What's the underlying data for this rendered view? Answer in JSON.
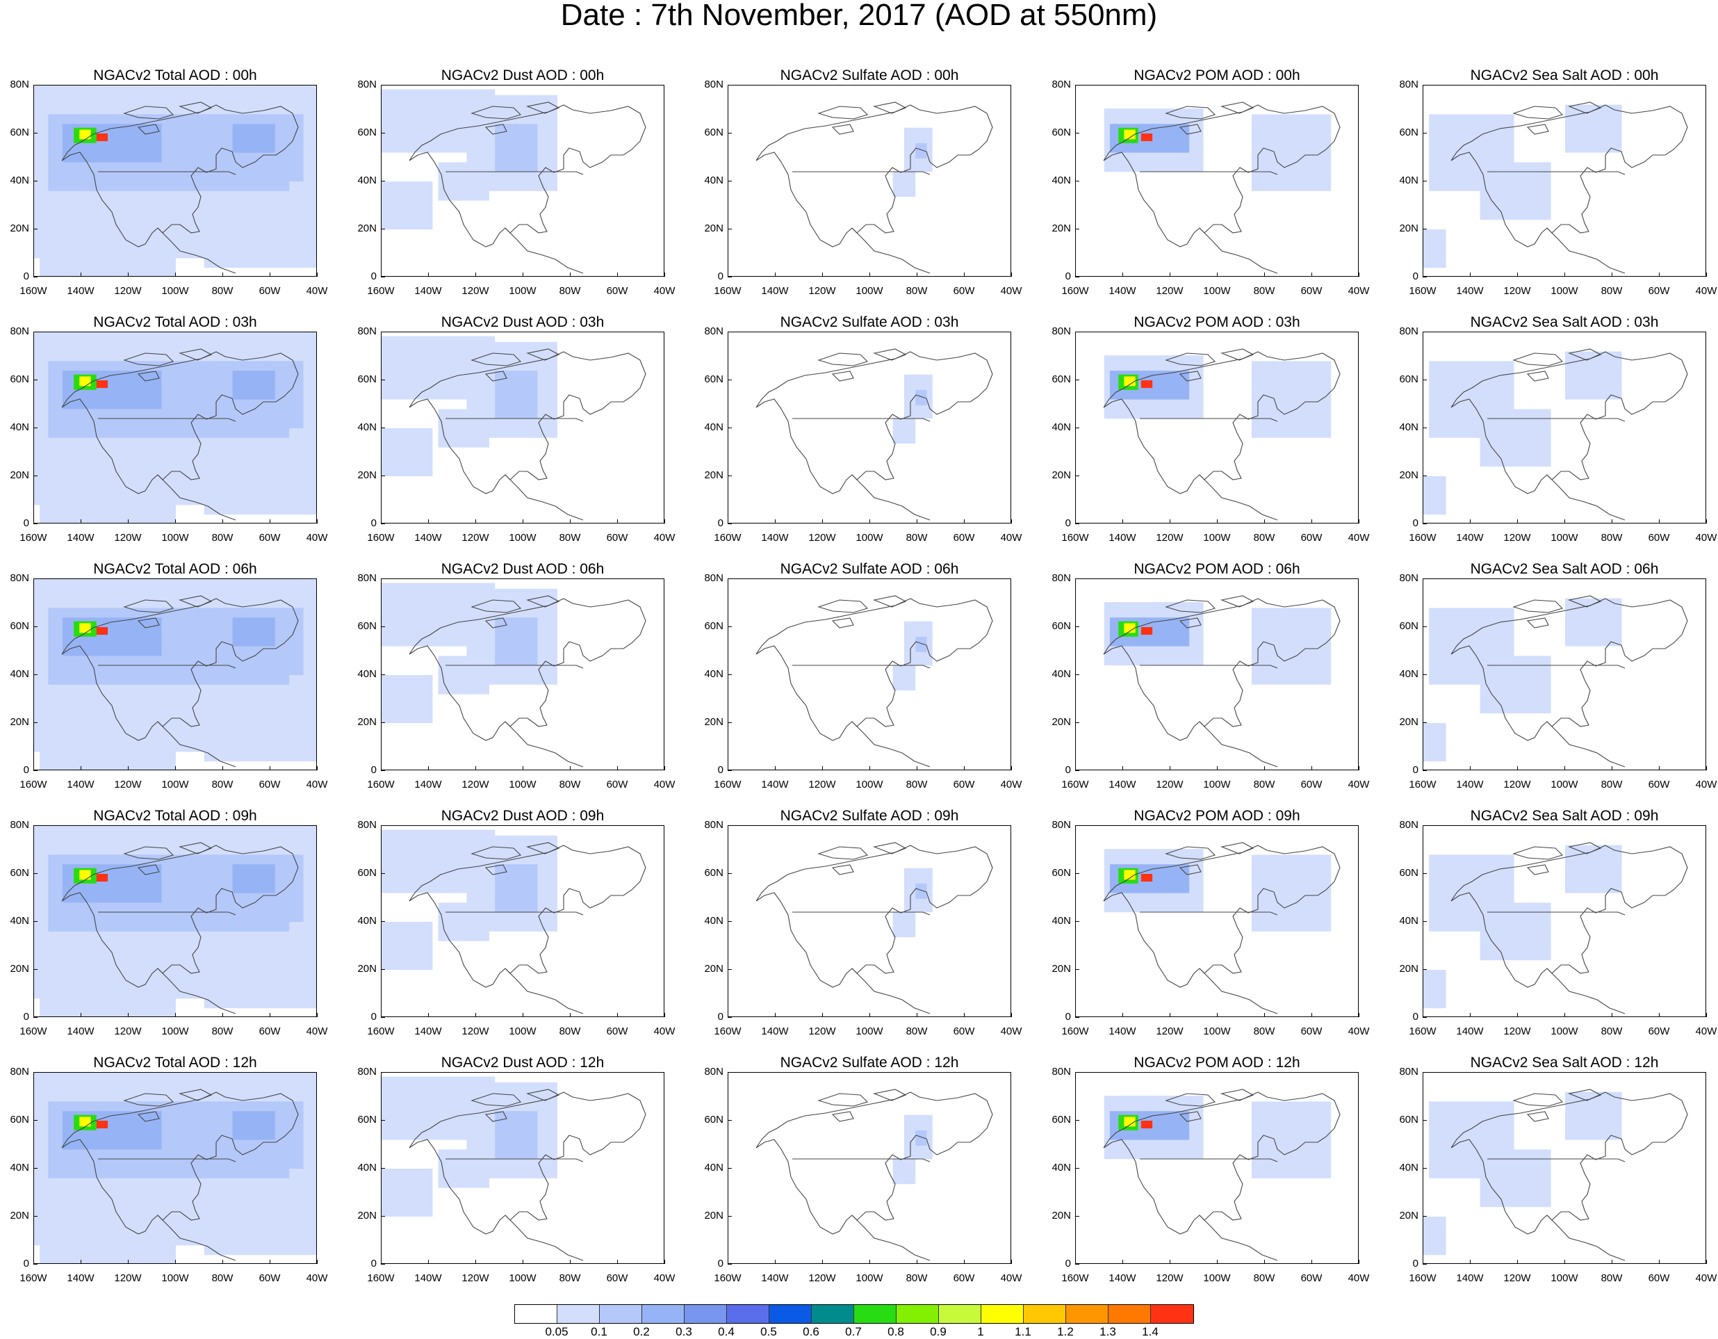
{
  "title": "Date : 7th November, 2017 (AOD at 550nm)",
  "lat_labels": [
    "80N",
    "60N",
    "40N",
    "20N",
    "0"
  ],
  "lon_labels": [
    "160W",
    "140W",
    "120W",
    "100W",
    "80W",
    "60W",
    "40W"
  ],
  "panels": [
    [
      "NGACv2 Total AOD : 00h",
      "NGACv2 Dust AOD : 00h",
      "NGACv2 Sulfate AOD : 00h",
      "NGACv2 POM AOD : 00h",
      "NGACv2 Sea Salt AOD : 00h"
    ],
    [
      "NGACv2 Total AOD : 03h",
      "NGACv2 Dust AOD : 03h",
      "NGACv2 Sulfate AOD : 03h",
      "NGACv2 POM AOD : 03h",
      "NGACv2 Sea Salt AOD : 03h"
    ],
    [
      "NGACv2 Total AOD : 06h",
      "NGACv2 Dust AOD : 06h",
      "NGACv2 Sulfate AOD : 06h",
      "NGACv2 POM AOD : 06h",
      "NGACv2 Sea Salt AOD : 06h"
    ],
    [
      "NGACv2 Total AOD : 09h",
      "NGACv2 Dust AOD : 09h",
      "NGACv2 Sulfate AOD : 09h",
      "NGACv2 POM AOD : 09h",
      "NGACv2 Sea Salt  AOD : 09h"
    ],
    [
      "NGACv2 Total AOD  : 12h",
      "NGACv2 Dust AOD : 12h",
      "NGACv2 Sulfate AOD : 12h",
      "NGACv2 POM  AOD : 12h",
      "NGACv2 Sea Salt  AOD : 12h"
    ]
  ],
  "colorbar": {
    "colors": [
      "#ffffff",
      "#d2defc",
      "#b4c8fa",
      "#96b4f5",
      "#7896f0",
      "#5a6eeb",
      "#0a5ae6",
      "#008c8c",
      "#28dc14",
      "#82f000",
      "#c8fa3c",
      "#ffff00",
      "#ffc800",
      "#ff9600",
      "#ff7800",
      "#ff3214"
    ],
    "labels": [
      "0.05",
      "0.1",
      "0.2",
      "0.3",
      "0.4",
      "0.5",
      "0.6",
      "0.7",
      "0.8",
      "0.9",
      "1",
      "1.1",
      "1.2",
      "1.3",
      "1.4"
    ]
  }
}
